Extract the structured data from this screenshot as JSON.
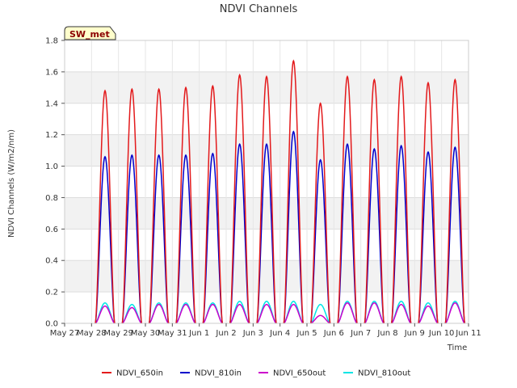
{
  "chart_data": {
    "type": "line",
    "title": "NDVI Channels",
    "xlabel": "Time",
    "ylabel": "NDVI Channels (W/m2/nm)",
    "badge": "SW_met",
    "ylim": [
      0,
      1.8
    ],
    "yticks": [
      0.0,
      0.2,
      0.4,
      0.6,
      0.8,
      1.0,
      1.2,
      1.4,
      1.6,
      1.8
    ],
    "ytick_labels": [
      "0.0",
      "0.2",
      "0.4",
      "0.6",
      "0.8",
      "1.0",
      "1.2",
      "1.4",
      "1.6",
      "1.8"
    ],
    "xlim_days": [
      0,
      15
    ],
    "xtick_labels": [
      "May 27",
      "May 28",
      "May 29",
      "May 30",
      "May 31",
      "Jun 1",
      "Jun 2",
      "Jun 3",
      "Jun 4",
      "Jun 5",
      "Jun 6",
      "Jun 7",
      "Jun 8",
      "Jun 9",
      "Jun 10",
      "Jun 11"
    ],
    "grid": true,
    "legend_position": "bottom",
    "day_peak_hour_offset": 0.5,
    "series": [
      {
        "name": "NDVI_650in",
        "color": "#e31a1c",
        "daily_peaks": [
          1.48,
          1.49,
          1.49,
          1.5,
          1.51,
          1.58,
          1.57,
          1.67,
          1.4,
          1.57,
          1.55,
          1.57,
          1.53,
          1.55
        ]
      },
      {
        "name": "NDVI_810in",
        "color": "#0000cc",
        "daily_peaks": [
          1.06,
          1.07,
          1.07,
          1.07,
          1.08,
          1.14,
          1.14,
          1.22,
          1.04,
          1.14,
          1.11,
          1.13,
          1.09,
          1.12
        ]
      },
      {
        "name": "NDVI_650out",
        "color": "#cc00cc",
        "daily_peaks": [
          0.11,
          0.1,
          0.12,
          0.12,
          0.12,
          0.12,
          0.12,
          0.12,
          0.05,
          0.13,
          0.13,
          0.12,
          0.11,
          0.13
        ]
      },
      {
        "name": "NDVI_810out",
        "color": "#00e5e5",
        "daily_peaks": [
          0.13,
          0.12,
          0.13,
          0.13,
          0.13,
          0.14,
          0.14,
          0.14,
          0.12,
          0.14,
          0.14,
          0.14,
          0.13,
          0.14
        ]
      }
    ]
  }
}
